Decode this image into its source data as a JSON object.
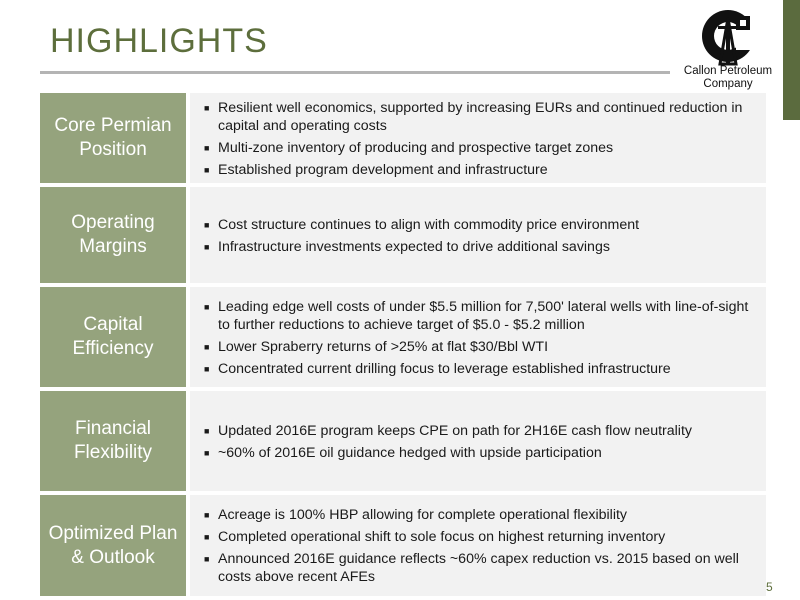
{
  "title": "HIGHLIGHTS",
  "logo": {
    "line1": "Callon Petroleum",
    "line2": "Company"
  },
  "colors": {
    "accent": "#5b6b3e",
    "label_bg": "#95a37d",
    "content_bg": "#f2f2f2",
    "title": "#5d6e3c"
  },
  "rows": [
    {
      "label": "Core Permian Position",
      "bullets": [
        "Resilient well economics, supported by increasing EURs and continued reduction in capital and operating costs",
        "Multi-zone inventory of producing and prospective target zones",
        "Established program development and infrastructure"
      ]
    },
    {
      "label": "Operating Margins",
      "bullets": [
        "Cost structure continues to align with commodity price environment",
        "Infrastructure investments expected to drive additional savings"
      ]
    },
    {
      "label": "Capital Efficiency",
      "bullets": [
        "Leading edge well costs of under $5.5 million for 7,500' lateral wells with line-of-sight to further reductions to achieve target of $5.0 - $5.2 million",
        "Lower Spraberry returns of >25% at flat $30/Bbl WTI",
        "Concentrated current drilling focus to leverage established infrastructure"
      ]
    },
    {
      "label": "Financial Flexibility",
      "bullets": [
        "Updated 2016E program keeps CPE on path for 2H16E cash flow neutrality",
        "~60% of 2016E oil guidance hedged with upside participation"
      ]
    },
    {
      "label": "Optimized Plan & Outlook",
      "bullets": [
        "Acreage is 100% HBP allowing for complete operational flexibility",
        "Completed operational shift to sole focus on highest returning inventory",
        "Announced 2016E guidance reflects ~60% capex reduction vs. 2015 based on well costs above recent AFEs"
      ]
    }
  ],
  "page_number": "5"
}
